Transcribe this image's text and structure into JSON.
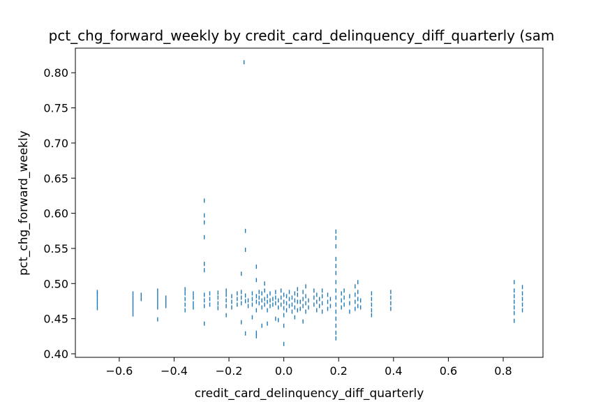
{
  "chart_data": {
    "type": "scatter",
    "title": "pct_chg_forward_weekly by credit_card_delinquency_diff_quarterly (sam",
    "xlabel": "credit_card_delinquency_diff_quarterly",
    "ylabel": "pct_chg_forward_weekly",
    "xlim": [
      -0.76,
      0.945
    ],
    "ylim": [
      0.395,
      0.835
    ],
    "x_ticks": [
      -0.6,
      -0.4,
      -0.2,
      0.0,
      0.2,
      0.4,
      0.6,
      0.8
    ],
    "x_tick_labels": [
      "−0.6",
      "−0.4",
      "−0.2",
      "0.0",
      "0.2",
      "0.4",
      "0.6",
      "0.8"
    ],
    "y_ticks": [
      0.4,
      0.45,
      0.5,
      0.55,
      0.6,
      0.65,
      0.7,
      0.75,
      0.8
    ],
    "y_tick_labels": [
      "0.40",
      "0.45",
      "0.50",
      "0.55",
      "0.60",
      "0.65",
      "0.70",
      "0.75",
      "0.80"
    ],
    "marker_color": "#1f77b4",
    "marker": "vertical tick",
    "grid": false,
    "series": [
      {
        "points": [
          [
            -0.68,
            0.465
          ],
          [
            -0.68,
            0.47
          ],
          [
            -0.68,
            0.475
          ],
          [
            -0.68,
            0.48
          ],
          [
            -0.68,
            0.485
          ],
          [
            -0.68,
            0.488
          ],
          [
            -0.55,
            0.456
          ],
          [
            -0.55,
            0.462
          ],
          [
            -0.55,
            0.468
          ],
          [
            -0.55,
            0.474
          ],
          [
            -0.55,
            0.48
          ],
          [
            -0.55,
            0.486
          ],
          [
            -0.52,
            0.478
          ],
          [
            -0.52,
            0.484
          ],
          [
            -0.46,
            0.449
          ],
          [
            -0.46,
            0.466
          ],
          [
            -0.46,
            0.472
          ],
          [
            -0.46,
            0.478
          ],
          [
            -0.46,
            0.484
          ],
          [
            -0.46,
            0.49
          ],
          [
            -0.43,
            0.468
          ],
          [
            -0.43,
            0.474
          ],
          [
            -0.43,
            0.48
          ],
          [
            -0.36,
            0.462
          ],
          [
            -0.36,
            0.47
          ],
          [
            -0.36,
            0.478
          ],
          [
            -0.36,
            0.486
          ],
          [
            -0.36,
            0.492
          ],
          [
            -0.33,
            0.466
          ],
          [
            -0.33,
            0.472
          ],
          [
            -0.33,
            0.48
          ],
          [
            -0.33,
            0.486
          ],
          [
            -0.29,
            0.443
          ],
          [
            -0.29,
            0.468
          ],
          [
            -0.29,
            0.476
          ],
          [
            -0.29,
            0.484
          ],
          [
            -0.29,
            0.519
          ],
          [
            -0.29,
            0.528
          ],
          [
            -0.29,
            0.566
          ],
          [
            -0.29,
            0.587
          ],
          [
            -0.29,
            0.597
          ],
          [
            -0.29,
            0.618
          ],
          [
            -0.27,
            0.47
          ],
          [
            -0.27,
            0.478
          ],
          [
            -0.27,
            0.486
          ],
          [
            -0.24,
            0.465
          ],
          [
            -0.24,
            0.472
          ],
          [
            -0.24,
            0.48
          ],
          [
            -0.24,
            0.487
          ],
          [
            -0.21,
            0.455
          ],
          [
            -0.21,
            0.468
          ],
          [
            -0.21,
            0.476
          ],
          [
            -0.21,
            0.484
          ],
          [
            -0.21,
            0.49
          ],
          [
            -0.19,
            0.466
          ],
          [
            -0.19,
            0.474
          ],
          [
            -0.19,
            0.482
          ],
          [
            -0.17,
            0.47
          ],
          [
            -0.17,
            0.478
          ],
          [
            -0.17,
            0.486
          ],
          [
            -0.155,
            0.445
          ],
          [
            -0.155,
            0.472
          ],
          [
            -0.155,
            0.48
          ],
          [
            -0.155,
            0.488
          ],
          [
            -0.155,
            0.514
          ],
          [
            -0.14,
            0.429
          ],
          [
            -0.14,
            0.475
          ],
          [
            -0.14,
            0.483
          ],
          [
            -0.14,
            0.548
          ],
          [
            -0.14,
            0.575
          ],
          [
            -0.145,
            0.815
          ],
          [
            -0.13,
            0.468
          ],
          [
            -0.13,
            0.476
          ],
          [
            -0.115,
            0.452
          ],
          [
            -0.115,
            0.47
          ],
          [
            -0.115,
            0.478
          ],
          [
            -0.115,
            0.486
          ],
          [
            -0.1,
            0.425
          ],
          [
            -0.1,
            0.43
          ],
          [
            -0.1,
            0.462
          ],
          [
            -0.1,
            0.474
          ],
          [
            -0.1,
            0.482
          ],
          [
            -0.1,
            0.505
          ],
          [
            -0.1,
            0.524
          ],
          [
            -0.09,
            0.472
          ],
          [
            -0.09,
            0.48
          ],
          [
            -0.09,
            0.488
          ],
          [
            -0.08,
            0.44
          ],
          [
            -0.08,
            0.466
          ],
          [
            -0.08,
            0.476
          ],
          [
            -0.08,
            0.486
          ],
          [
            -0.07,
            0.47
          ],
          [
            -0.07,
            0.478
          ],
          [
            -0.07,
            0.49
          ],
          [
            -0.07,
            0.5
          ],
          [
            -0.06,
            0.443
          ],
          [
            -0.06,
            0.462
          ],
          [
            -0.06,
            0.474
          ],
          [
            -0.06,
            0.482
          ],
          [
            -0.05,
            0.468
          ],
          [
            -0.05,
            0.476
          ],
          [
            -0.05,
            0.486
          ],
          [
            -0.04,
            0.47
          ],
          [
            -0.04,
            0.478
          ],
          [
            -0.03,
            0.45
          ],
          [
            -0.03,
            0.472
          ],
          [
            -0.03,
            0.48
          ],
          [
            -0.03,
            0.488
          ],
          [
            -0.02,
            0.448
          ],
          [
            -0.02,
            0.466
          ],
          [
            -0.02,
            0.476
          ],
          [
            -0.01,
            0.47
          ],
          [
            -0.01,
            0.48
          ],
          [
            -0.01,
            0.49
          ],
          [
            0.0,
            0.414
          ],
          [
            0.0,
            0.44
          ],
          [
            0.0,
            0.455
          ],
          [
            0.0,
            0.465
          ],
          [
            0.0,
            0.474
          ],
          [
            0.0,
            0.484
          ],
          [
            0.01,
            0.462
          ],
          [
            0.01,
            0.472
          ],
          [
            0.01,
            0.482
          ],
          [
            0.02,
            0.468
          ],
          [
            0.02,
            0.478
          ],
          [
            0.02,
            0.488
          ],
          [
            0.03,
            0.46
          ],
          [
            0.03,
            0.47
          ],
          [
            0.03,
            0.48
          ],
          [
            0.04,
            0.452
          ],
          [
            0.04,
            0.466
          ],
          [
            0.04,
            0.476
          ],
          [
            0.04,
            0.486
          ],
          [
            0.05,
            0.462
          ],
          [
            0.05,
            0.474
          ],
          [
            0.05,
            0.484
          ],
          [
            0.05,
            0.492
          ],
          [
            0.06,
            0.464
          ],
          [
            0.06,
            0.474
          ],
          [
            0.07,
            0.446
          ],
          [
            0.07,
            0.468
          ],
          [
            0.07,
            0.478
          ],
          [
            0.07,
            0.488
          ],
          [
            0.08,
            0.46
          ],
          [
            0.08,
            0.472
          ],
          [
            0.08,
            0.482
          ],
          [
            0.08,
            0.496
          ],
          [
            0.09,
            0.466
          ],
          [
            0.09,
            0.476
          ],
          [
            0.11,
            0.47
          ],
          [
            0.11,
            0.48
          ],
          [
            0.11,
            0.49
          ],
          [
            0.12,
            0.462
          ],
          [
            0.12,
            0.474
          ],
          [
            0.12,
            0.484
          ],
          [
            0.13,
            0.468
          ],
          [
            0.13,
            0.478
          ],
          [
            0.14,
            0.46
          ],
          [
            0.14,
            0.472
          ],
          [
            0.14,
            0.482
          ],
          [
            0.14,
            0.49
          ],
          [
            0.16,
            0.464
          ],
          [
            0.16,
            0.474
          ],
          [
            0.16,
            0.484
          ],
          [
            0.17,
            0.468
          ],
          [
            0.17,
            0.478
          ],
          [
            0.19,
            0.422
          ],
          [
            0.19,
            0.43
          ],
          [
            0.19,
            0.44
          ],
          [
            0.19,
            0.45
          ],
          [
            0.19,
            0.46
          ],
          [
            0.19,
            0.47
          ],
          [
            0.19,
            0.48
          ],
          [
            0.19,
            0.49
          ],
          [
            0.19,
            0.502
          ],
          [
            0.19,
            0.515
          ],
          [
            0.19,
            0.525
          ],
          [
            0.19,
            0.535
          ],
          [
            0.19,
            0.553
          ],
          [
            0.19,
            0.565
          ],
          [
            0.19,
            0.574
          ],
          [
            0.21,
            0.466
          ],
          [
            0.21,
            0.476
          ],
          [
            0.21,
            0.486
          ],
          [
            0.22,
            0.47
          ],
          [
            0.22,
            0.48
          ],
          [
            0.22,
            0.49
          ],
          [
            0.24,
            0.46
          ],
          [
            0.24,
            0.472
          ],
          [
            0.24,
            0.482
          ],
          [
            0.26,
            0.464
          ],
          [
            0.26,
            0.474
          ],
          [
            0.26,
            0.484
          ],
          [
            0.26,
            0.496
          ],
          [
            0.27,
            0.468
          ],
          [
            0.27,
            0.478
          ],
          [
            0.27,
            0.488
          ],
          [
            0.27,
            0.502
          ],
          [
            0.28,
            0.466
          ],
          [
            0.28,
            0.476
          ],
          [
            0.32,
            0.455
          ],
          [
            0.32,
            0.462
          ],
          [
            0.32,
            0.47
          ],
          [
            0.32,
            0.478
          ],
          [
            0.32,
            0.486
          ],
          [
            0.39,
            0.464
          ],
          [
            0.39,
            0.472
          ],
          [
            0.39,
            0.48
          ],
          [
            0.39,
            0.488
          ],
          [
            0.84,
            0.447
          ],
          [
            0.84,
            0.458
          ],
          [
            0.84,
            0.466
          ],
          [
            0.84,
            0.474
          ],
          [
            0.84,
            0.482
          ],
          [
            0.84,
            0.49
          ],
          [
            0.84,
            0.502
          ],
          [
            0.87,
            0.462
          ],
          [
            0.87,
            0.47
          ],
          [
            0.87,
            0.478
          ],
          [
            0.87,
            0.486
          ],
          [
            0.87,
            0.495
          ]
        ]
      }
    ]
  }
}
